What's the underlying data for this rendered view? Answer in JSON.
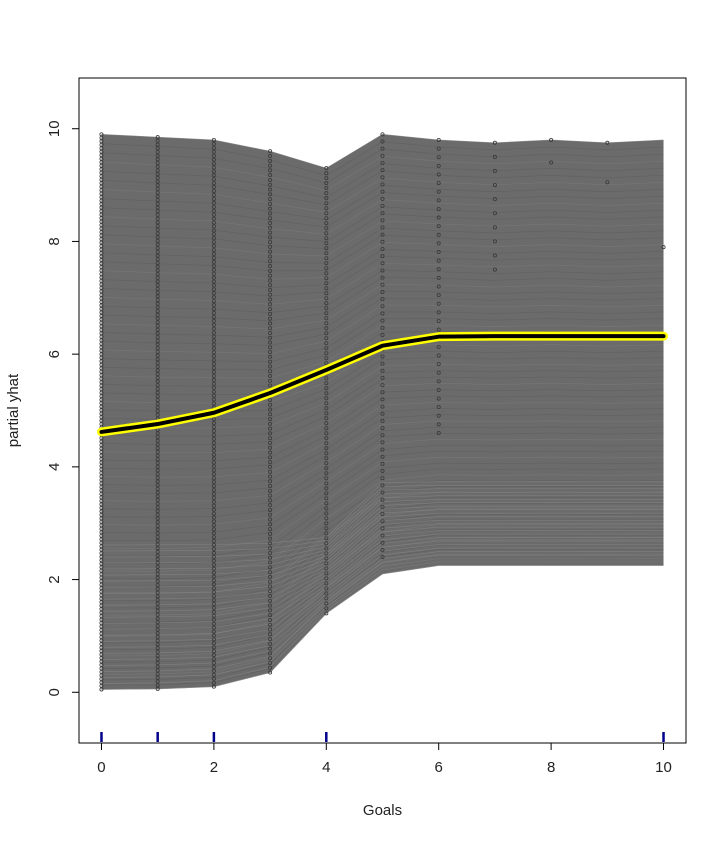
{
  "chart_data": {
    "type": "line",
    "xlabel": "Goals",
    "ylabel": "partial yhat",
    "xlim": [
      -0.4,
      10.4
    ],
    "ylim": [
      -0.9,
      10.9
    ],
    "x_ticks": [
      "0",
      "2",
      "4",
      "6",
      "8",
      "10"
    ],
    "y_ticks": [
      "0",
      "2",
      "4",
      "6",
      "8",
      "10"
    ],
    "x": [
      0,
      1,
      2,
      3,
      4,
      5,
      6,
      7,
      8,
      9,
      10
    ],
    "series": [
      {
        "role": "average",
        "values": [
          4.62,
          4.76,
          4.96,
          5.31,
          5.72,
          6.15,
          6.31,
          6.32,
          6.32,
          6.32,
          6.32
        ]
      }
    ],
    "ice_band": {
      "lower": [
        0.05,
        0.06,
        0.1,
        0.35,
        1.4,
        2.1,
        2.25,
        2.25,
        2.25,
        2.25,
        2.25
      ],
      "upper": [
        9.9,
        9.85,
        9.8,
        9.6,
        9.3,
        9.9,
        9.8,
        9.75,
        9.8,
        9.75,
        9.8
      ]
    },
    "data_points_x": [
      0,
      1,
      2,
      3,
      4,
      5,
      6,
      7,
      8,
      9,
      10
    ],
    "rug_x": [
      0,
      1,
      2,
      4,
      10
    ],
    "colors": {
      "ice_lines": "#6b6b6b",
      "average_line": "#000000",
      "average_halo": "#ffff00",
      "points": "#3a3a3a",
      "rug": "#00008b"
    }
  }
}
